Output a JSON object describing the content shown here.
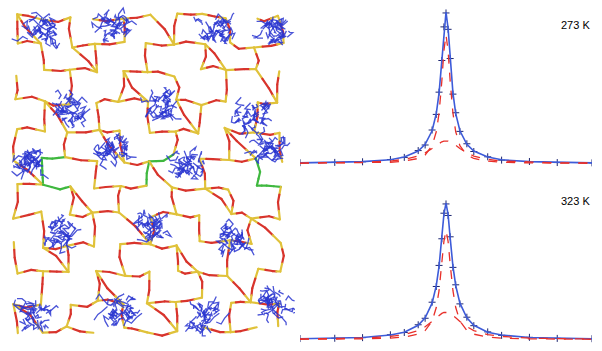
{
  "chart_data": [
    {
      "type": "line",
      "title": "273 K",
      "x": [
        -10.5,
        -8,
        -6,
        -4,
        -3,
        -2,
        -1.5,
        -1,
        -0.7,
        -0.5,
        -0.3,
        -0.15,
        0,
        0.15,
        0.3,
        0.5,
        0.7,
        1,
        1.5,
        2,
        3,
        4,
        6,
        8,
        10.5
      ],
      "series": [
        {
          "color": "#1c2570",
          "marker": "cross",
          "line_style": "none",
          "values": [
            0.5,
            0.7,
            1.1,
            2.6,
            4.0,
            8.5,
            12.2,
            22.1,
            32.4,
            47.1,
            68.0,
            90.2,
            99.4,
            88.6,
            69.3,
            45.8,
            33.5,
            21.2,
            13.0,
            7.9,
            4.4,
            2.2,
            1.3,
            0.6,
            0.4
          ]
        },
        {
          "color": "#3d5bd9",
          "line_style": "solid",
          "values": [
            0.38,
            0.65,
            1.2,
            2.4,
            4.2,
            8.2,
            12.6,
            21.6,
            32.9,
            46.5,
            68.7,
            89.3,
            100,
            89.3,
            68.7,
            46.5,
            32.9,
            21.6,
            12.6,
            8.2,
            4.2,
            2.4,
            1.2,
            0.65,
            0.38
          ]
        },
        {
          "color": "#e8302a",
          "line_style": "dash",
          "values": [
            0.12,
            0.2,
            0.4,
            0.8,
            1.5,
            3.3,
            5.6,
            11.7,
            20.9,
            33.2,
            54.4,
            74.5,
            85,
            74.5,
            54.4,
            33.2,
            20.9,
            11.7,
            5.6,
            3.3,
            1.5,
            0.8,
            0.4,
            0.2,
            0.12
          ]
        },
        {
          "color": "#e8302a",
          "line_style": "dash",
          "values": [
            0.26,
            0.45,
            0.8,
            1.6,
            2.7,
            4.9,
            7.0,
            9.9,
            12.0,
            13.3,
            14.3,
            14.8,
            15,
            14.8,
            14.3,
            13.3,
            12.0,
            9.9,
            7.0,
            4.9,
            2.7,
            1.6,
            0.8,
            0.45,
            0.26
          ]
        }
      ],
      "xlim": [
        -10.5,
        10.5
      ],
      "ylim": [
        -3,
        104
      ],
      "tick_labels": false,
      "grid": false
    },
    {
      "type": "line",
      "title": "323 K",
      "x": [
        -10.5,
        -8,
        -6,
        -4,
        -3,
        -2,
        -1.5,
        -1,
        -0.7,
        -0.5,
        -0.3,
        -0.15,
        0,
        0.15,
        0.3,
        0.5,
        0.7,
        1,
        1.5,
        2,
        3,
        4,
        6,
        8,
        10.5
      ],
      "series": [
        {
          "color": "#1c2570",
          "marker": "cross",
          "line_style": "none",
          "values": [
            0.6,
            0.8,
            1.2,
            3.1,
            4.6,
            9.7,
            14.0,
            24.6,
            35.0,
            48.9,
            66.5,
            83.4,
            89.5,
            81.9,
            67.8,
            47.6,
            36.1,
            23.5,
            14.7,
            9.1,
            5.0,
            2.7,
            1.4,
            0.7,
            0.5
          ]
        },
        {
          "color": "#3d5bd9",
          "line_style": "solid",
          "values": [
            0.44,
            0.76,
            1.3,
            2.9,
            4.8,
            9.4,
            14.3,
            24.0,
            35.5,
            48.2,
            67.1,
            82.6,
            90,
            82.6,
            67.1,
            48.2,
            35.5,
            24.0,
            14.3,
            9.4,
            4.8,
            2.9,
            1.3,
            0.76,
            0.44
          ]
        },
        {
          "color": "#e8302a",
          "line_style": "dash",
          "values": [
            0.13,
            0.23,
            0.4,
            0.9,
            1.6,
            3.5,
            5.9,
            12.1,
            21.1,
            32.2,
            49.9,
            64.8,
            72,
            64.8,
            49.9,
            32.2,
            21.1,
            12.1,
            5.9,
            3.5,
            1.6,
            0.9,
            0.4,
            0.23,
            0.13
          ]
        },
        {
          "color": "#e8302a",
          "line_style": "dash",
          "values": [
            0.31,
            0.53,
            0.9,
            2.0,
            3.2,
            5.9,
            8.4,
            11.9,
            14.4,
            16.0,
            17.2,
            17.8,
            18,
            17.8,
            17.2,
            16.0,
            14.4,
            11.9,
            8.4,
            5.9,
            3.2,
            2.0,
            0.9,
            0.53,
            0.31
          ]
        }
      ],
      "xlim": [
        -10.5,
        10.5
      ],
      "ylim": [
        -3,
        104
      ],
      "tick_labels": false,
      "grid": false
    }
  ]
}
